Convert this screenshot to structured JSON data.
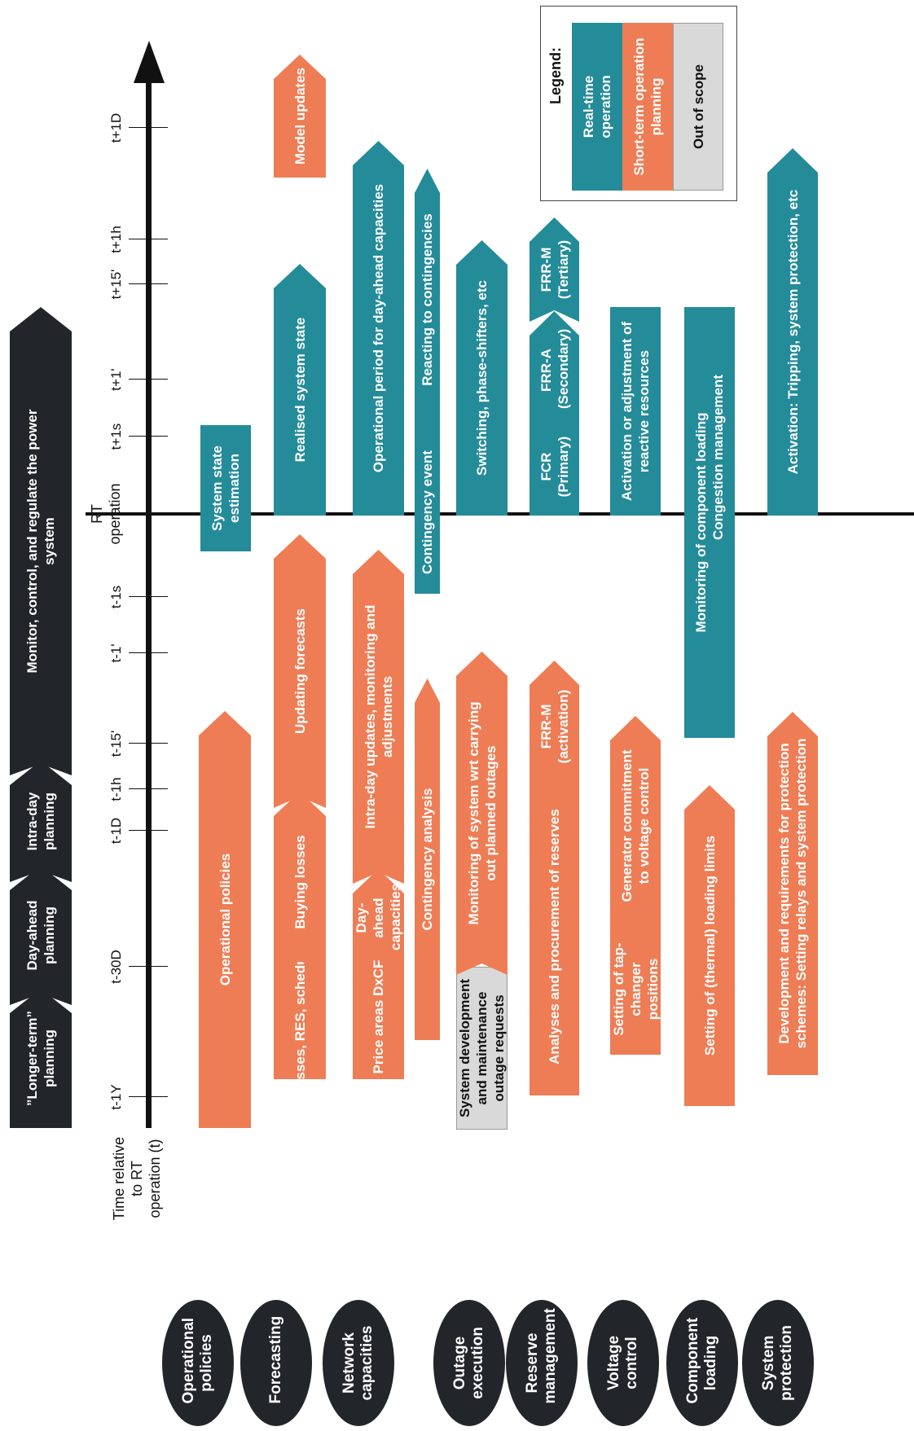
{
  "header": {
    "longer_term": "”Longer-term” planning",
    "day_ahead": "Day-ahead planning",
    "intra_day": "Intra-day planning",
    "monitor": "Monitor, control, and regulate the power system"
  },
  "axis": {
    "label": "Time relative to RT operation (t)",
    "rt_label": "RT operation",
    "ticks": [
      "t-1Y",
      "t-30D",
      "t-1D",
      "t-1h",
      "t-15'",
      "t-1'",
      "t-1s",
      "t+1s",
      "t+1'",
      "t+15'",
      "t+1h",
      "t+1D"
    ]
  },
  "categories": [
    "Operational policies",
    "Forecasting",
    "Network capacities",
    "Outage execution",
    "Reserve management",
    "Voltage control",
    "Component loading",
    "System protection"
  ],
  "bars": {
    "operational_policies": "Operational policies",
    "system_state_estimation": "System state estimation",
    "losses_res": "Losses, RES, schedules",
    "buying_losses": "Buying losses",
    "updating_forecasts": "Updating forecasts",
    "realised_state": "Realised system state",
    "model_updates": "Model updates",
    "price_areas": "Price areas DxCF",
    "dayahead_caps": "Day-ahead capacities",
    "intraday_updates": "Intra-day updates, monitoring and adjustments",
    "op_period": "Operational period for day-ahead capacities",
    "contingency_analysis": "Contingency analysis",
    "contingency_event": "Contingency event",
    "reacting": "Reacting to contingencies",
    "sys_dev": "System development and maintenance outage requests",
    "monitoring_outages": "Monitoring of system wrt carrying out planned outages",
    "switching": "Switching, phase-shifters, etc",
    "analyses_reserves": "Analyses and procurement of reserves",
    "frrm_activation": "FRR-M (activation)",
    "fcr": "FCR (Primary)",
    "frra": "FRR-A (Secondary)",
    "frrm_tertiary": "FRR-M (Tertiary)",
    "tap_changer": "Setting of tap-changer positions",
    "generator_commitment": "Generator commitment to voltage control",
    "reactive": "Activation or adjustment of reactive resources",
    "thermal_limits": "Setting of (thermal) loading limits",
    "monitoring_loading": "Monitoring of component loading",
    "congestion": "Congestion management",
    "protection_dev": "Development and requirements for protection schemes: Setting relays and system protection",
    "protection_act": "Activation: Tripping, system protection, etc"
  },
  "legend": {
    "title": "Legend:",
    "realtime": "Real-time operation",
    "shortterm": "Short-term operation planning",
    "out_of_scope": "Out of scope"
  },
  "colors": {
    "orange": "#ee7d55",
    "teal": "#248b99",
    "grey": "#d9d9d9",
    "dark": "#22262b"
  }
}
